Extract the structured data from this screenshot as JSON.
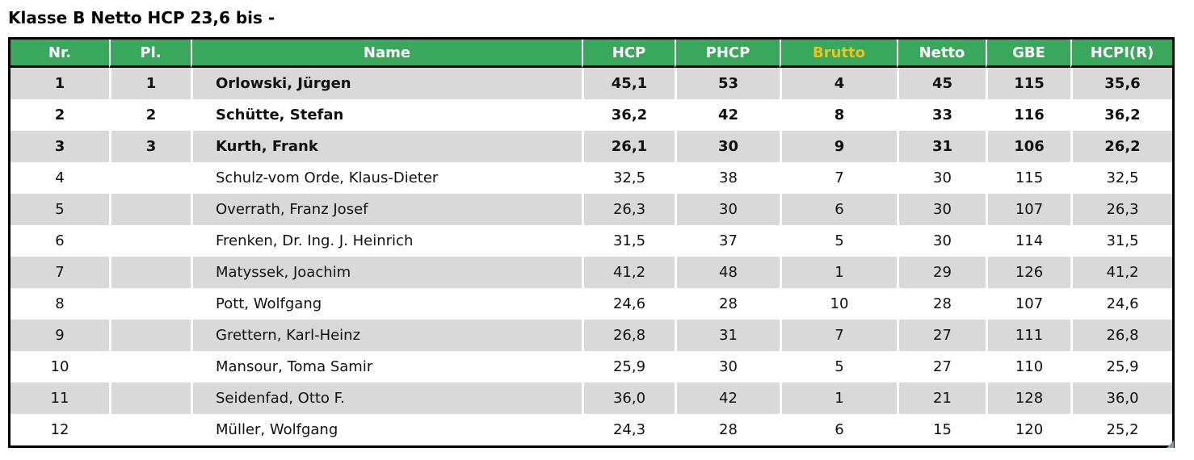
{
  "title": "Klasse B Netto HCP 23,6 bis -",
  "colors": {
    "header_bg": "#3aa85c",
    "header_text": "#ffffff",
    "brutto_text": "#eec319",
    "row_alt_bg": "#d9d9d9",
    "border": "#000000",
    "handle": "#8a94a8"
  },
  "table": {
    "columns": [
      {
        "key": "nr",
        "label": "Nr."
      },
      {
        "key": "pl",
        "label": "Pl."
      },
      {
        "key": "name",
        "label": "Name"
      },
      {
        "key": "hcp",
        "label": "HCP"
      },
      {
        "key": "phcp",
        "label": "PHCP"
      },
      {
        "key": "brutto",
        "label": "Brutto"
      },
      {
        "key": "netto",
        "label": "Netto"
      },
      {
        "key": "gbe",
        "label": "GBE"
      },
      {
        "key": "hcpi",
        "label": "HCPI(R)"
      }
    ],
    "rows": [
      {
        "nr": "1",
        "pl": "1",
        "name": "Orlowski, Jürgen",
        "hcp": "45,1",
        "phcp": "53",
        "brutto": "4",
        "netto": "45",
        "gbe": "115",
        "hcpi": "35,6",
        "bold": true
      },
      {
        "nr": "2",
        "pl": "2",
        "name": "Schütte, Stefan",
        "hcp": "36,2",
        "phcp": "42",
        "brutto": "8",
        "netto": "33",
        "gbe": "116",
        "hcpi": "36,2",
        "bold": true
      },
      {
        "nr": "3",
        "pl": "3",
        "name": "Kurth, Frank",
        "hcp": "26,1",
        "phcp": "30",
        "brutto": "9",
        "netto": "31",
        "gbe": "106",
        "hcpi": "26,2",
        "bold": true
      },
      {
        "nr": "4",
        "pl": "",
        "name": "Schulz-vom Orde, Klaus-Dieter",
        "hcp": "32,5",
        "phcp": "38",
        "brutto": "7",
        "netto": "30",
        "gbe": "115",
        "hcpi": "32,5",
        "bold": false
      },
      {
        "nr": "5",
        "pl": "",
        "name": "Overrath, Franz Josef",
        "hcp": "26,3",
        "phcp": "30",
        "brutto": "6",
        "netto": "30",
        "gbe": "107",
        "hcpi": "26,3",
        "bold": false
      },
      {
        "nr": "6",
        "pl": "",
        "name": "Frenken, Dr. Ing. J. Heinrich",
        "hcp": "31,5",
        "phcp": "37",
        "brutto": "5",
        "netto": "30",
        "gbe": "114",
        "hcpi": "31,5",
        "bold": false
      },
      {
        "nr": "7",
        "pl": "",
        "name": "Matyssek, Joachim",
        "hcp": "41,2",
        "phcp": "48",
        "brutto": "1",
        "netto": "29",
        "gbe": "126",
        "hcpi": "41,2",
        "bold": false
      },
      {
        "nr": "8",
        "pl": "",
        "name": "Pott, Wolfgang",
        "hcp": "24,6",
        "phcp": "28",
        "brutto": "10",
        "netto": "28",
        "gbe": "107",
        "hcpi": "24,6",
        "bold": false
      },
      {
        "nr": "9",
        "pl": "",
        "name": "Grettern, Karl-Heinz",
        "hcp": "26,8",
        "phcp": "31",
        "brutto": "7",
        "netto": "27",
        "gbe": "111",
        "hcpi": "26,8",
        "bold": false
      },
      {
        "nr": "10",
        "pl": "",
        "name": "Mansour, Toma Samir",
        "hcp": "25,9",
        "phcp": "30",
        "brutto": "5",
        "netto": "27",
        "gbe": "110",
        "hcpi": "25,9",
        "bold": false
      },
      {
        "nr": "11",
        "pl": "",
        "name": "Seidenfad, Otto F.",
        "hcp": "36,0",
        "phcp": "42",
        "brutto": "1",
        "netto": "21",
        "gbe": "128",
        "hcpi": "36,0",
        "bold": false
      },
      {
        "nr": "12",
        "pl": "",
        "name": "Müller, Wolfgang",
        "hcp": "24,3",
        "phcp": "28",
        "brutto": "6",
        "netto": "15",
        "gbe": "120",
        "hcpi": "25,2",
        "bold": false
      }
    ]
  }
}
